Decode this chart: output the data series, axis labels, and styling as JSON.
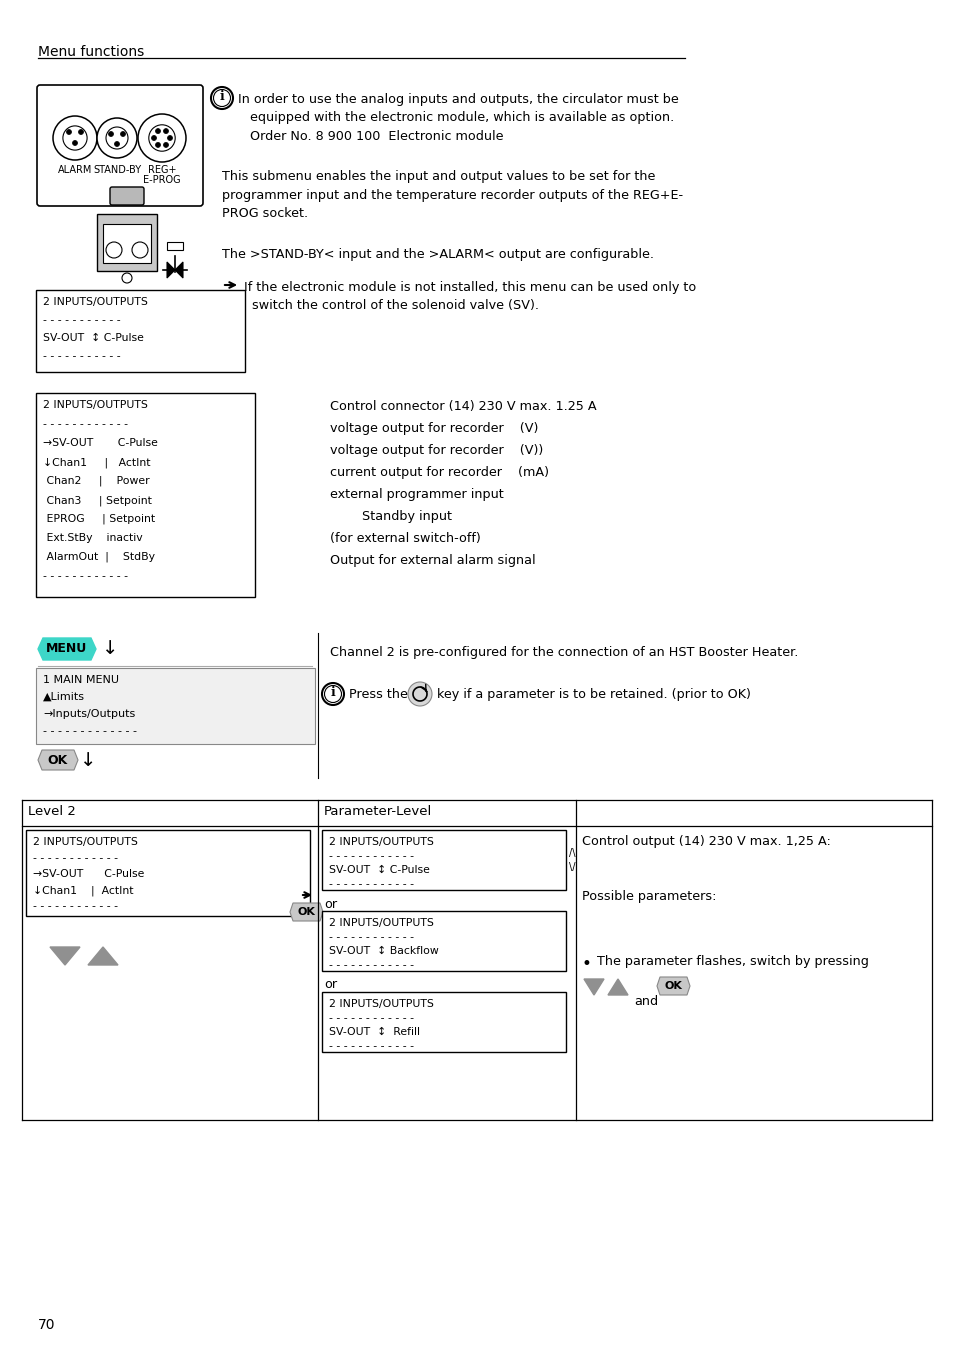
{
  "page_number": "70",
  "header_text": "Menu functions",
  "bg_color": "#ffffff",
  "text_color": "#000000",
  "info_box_text1": "In order to use the analog inputs and outputs, the circulator must be\n   equipped with the electronic module, which is available as option.\n   Order No. 8 900 100  Electronic module",
  "body_text1": "This submenu enables the input and output values to be set for the\nprogrammer input and the temperature recorder outputs of the REG+E-\nPROG socket.",
  "body_text2": "The >STAND-BY< input and the >ALARM< output are configurable.",
  "arrow_text": "If the electronic module is not installed, this menu can be used only to\n  switch the control of the solenoid valve (SV).",
  "menu_box1_lines": [
    "2 INPUTS/OUTPUTS",
    "- - - - - - - - - - -",
    "SV-OUT  ↕ C-Pulse",
    "- - - - - - - - - - -"
  ],
  "menu_box2_lines": [
    "2 INPUTS/OUTPUTS",
    "- - - - - - - - - - - -",
    "→SV-OUT       C-Pulse",
    "↓Chan1     |   ActInt",
    " Chan2     |    Power",
    " Chan3     | Setpoint",
    " EPROG     | Setpoint",
    " Ext.StBy    inactiv",
    " AlarmOut  |    StdBy",
    "- - - - - - - - - - - -"
  ],
  "right_text_lines": [
    "Control connector (14) 230 V max. 1.25 A",
    "voltage output for recorder    (V)",
    "voltage output for recorder    (V))",
    "current output for recorder    (mA)",
    "external programmer input",
    "        Standby input",
    "(for external switch-off)",
    "Output for external alarm signal"
  ],
  "menu_nav_lines": [
    "1 MAIN MENU",
    "▲Limits",
    "→Inputs/Outputs",
    "- - - - - - - - - - - - -"
  ],
  "channel2_text": "Channel 2 is pre-configured for the connection of an HST Booster Heater.",
  "press_text": "Press the",
  "press_text2": "key if a parameter is to be retained. (prior to OK)",
  "level2_text": "Level 2",
  "param_level_text": "Parameter-Level",
  "control_output_text": "Control output (14) 230 V max. 1,25 A:",
  "possible_text": "Possible parameters:",
  "bullet_text": "The parameter flashes, switch by pressing",
  "and_text": "and",
  "menu_box3_lines": [
    "2 INPUTS/OUTPUTS",
    "- - - - - - - - - - - -",
    "→SV-OUT      C-Pulse",
    "↓Chan1    |  ActInt",
    "- - - - - - - - - - - -"
  ],
  "menu_box4_lines": [
    "2 INPUTS/OUTPUTS",
    "- - - - - - - - - - - -",
    "SV-OUT  ↕ C-Pulse",
    "- - - - - - - - - - - -"
  ],
  "menu_box5_lines": [
    "2 INPUTS/OUTPUTS",
    "- - - - - - - - - - - -",
    "SV-OUT  ↕ Backflow",
    "- - - - - - - - - - - -"
  ],
  "menu_box6_lines": [
    "2 INPUTS/OUTPUTS",
    "- - - - - - - - - - - -",
    "SV-OUT  ↕  Refill",
    "- - - - - - - - - - - -"
  ],
  "menu_green": "#3dd6c8",
  "ok_color": "#c8c8c8"
}
